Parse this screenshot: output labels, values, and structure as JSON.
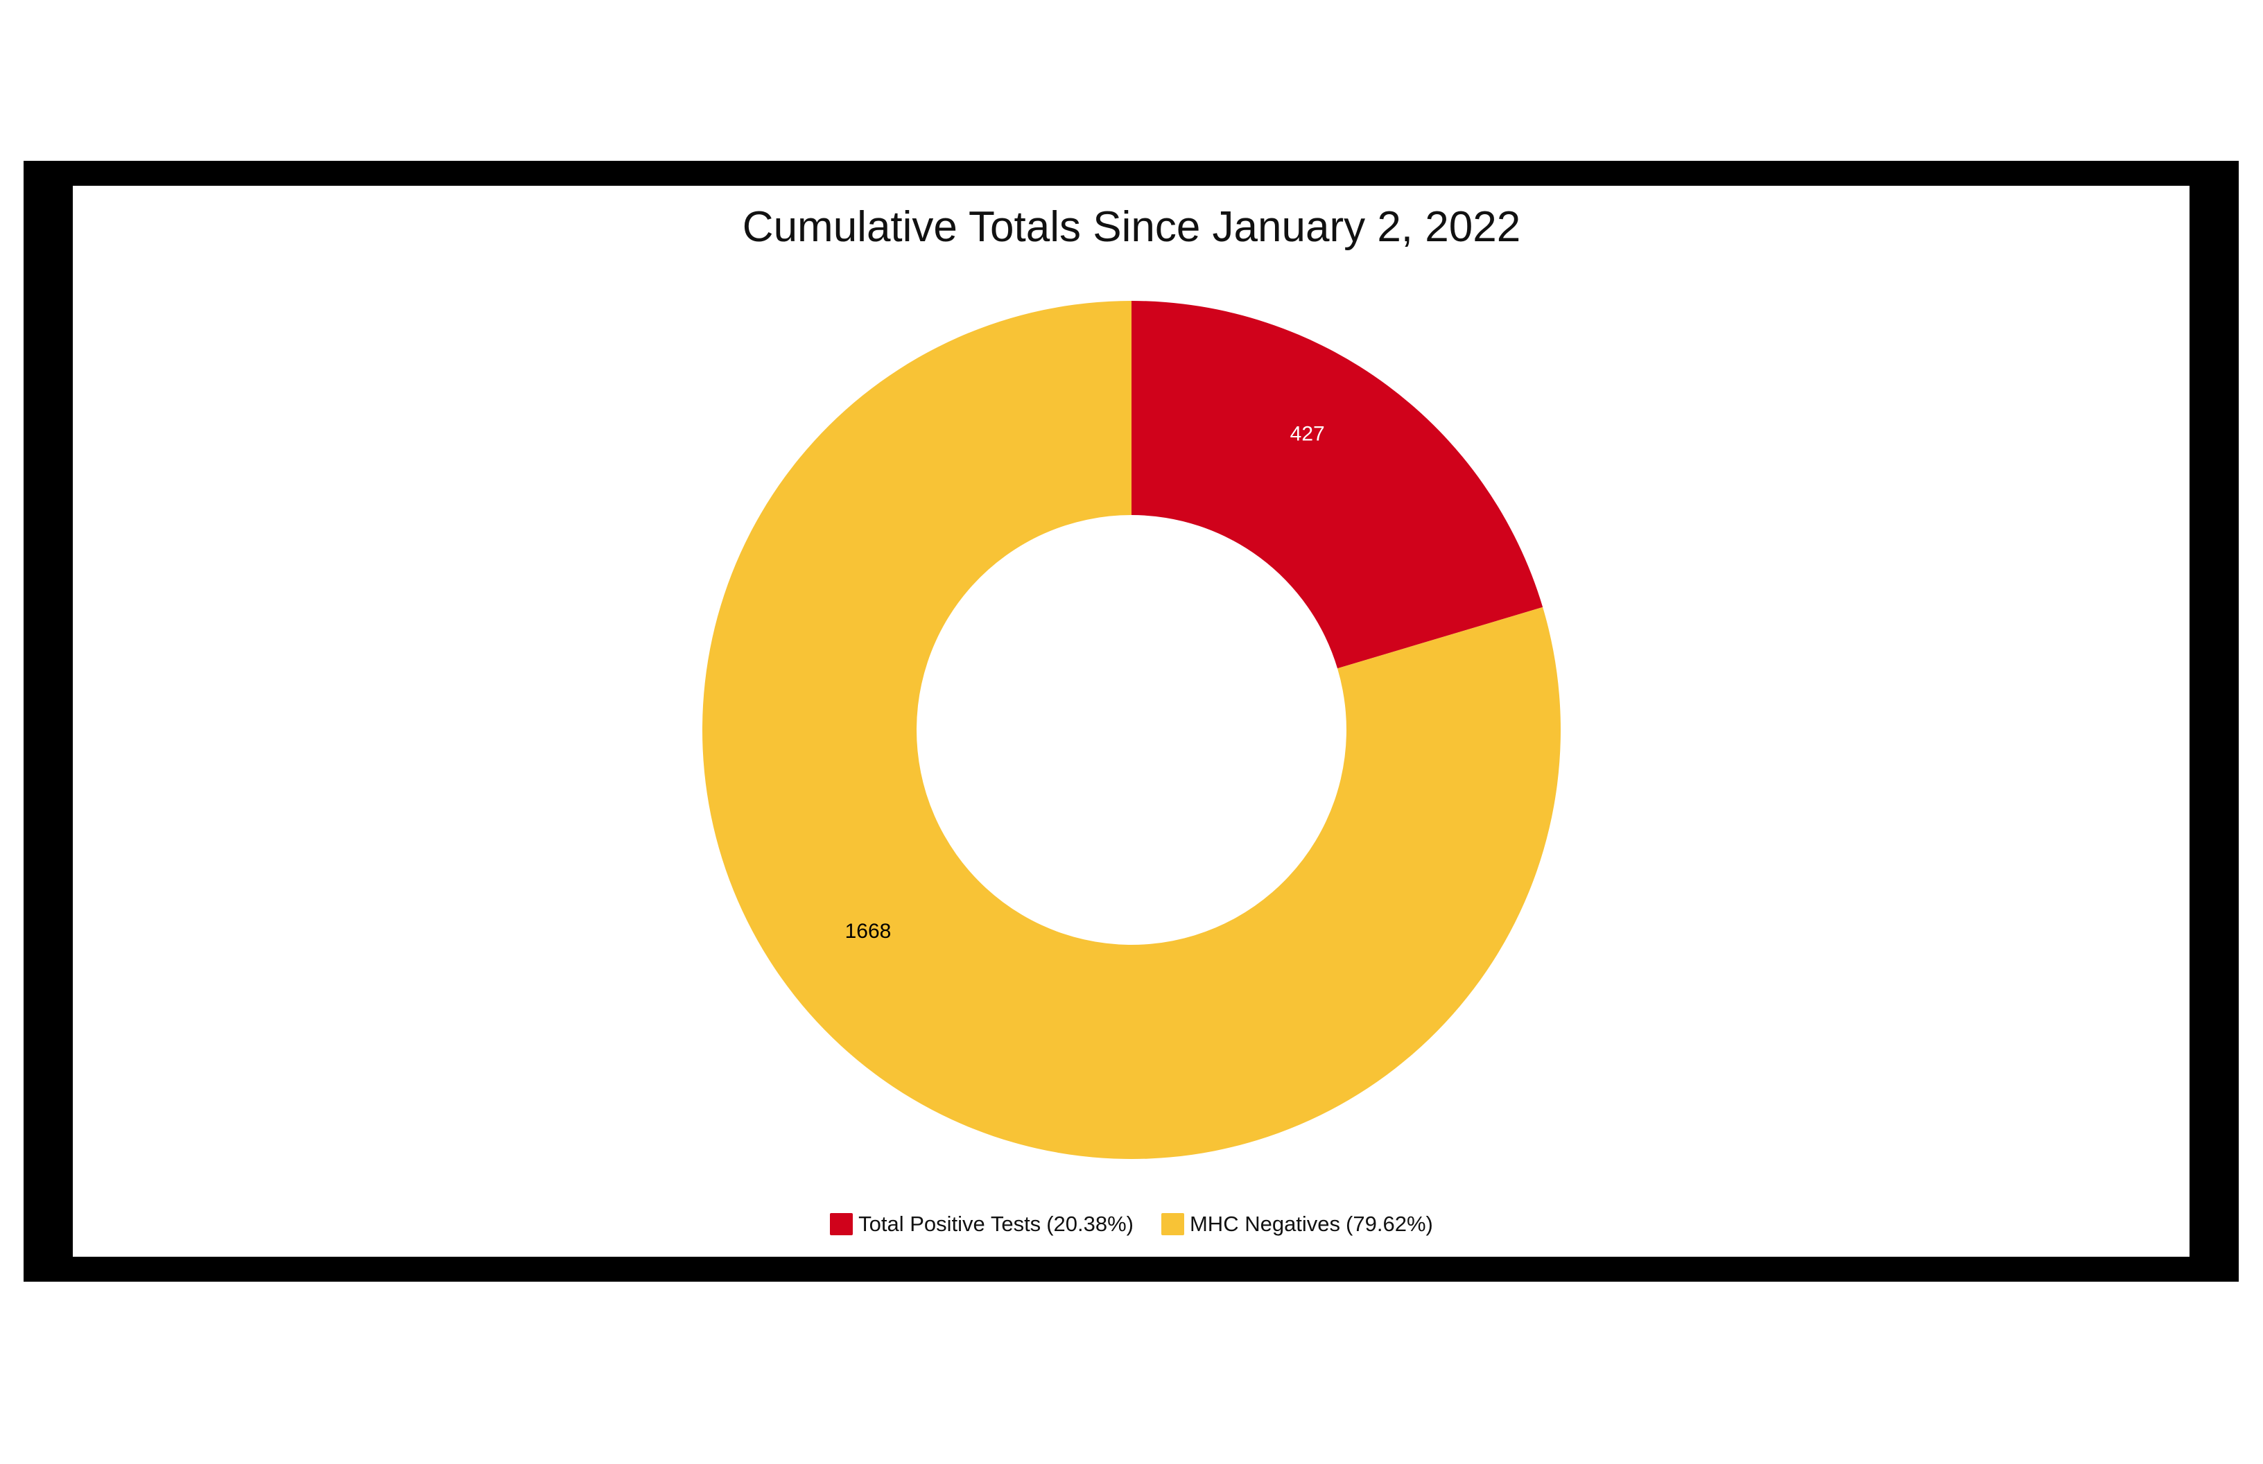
{
  "chart_data": {
    "type": "pie",
    "title": "Cumulative Totals Since January 2, 2022",
    "donut": true,
    "slices": [
      {
        "label": "Total Positive Tests",
        "value": 427,
        "percent_label": "(20.38%)",
        "color": "#D0021B",
        "label_color": "#ffffff"
      },
      {
        "label": "MHC Negatives",
        "value": 1668,
        "percent_label": "(79.62%)",
        "color": "#F8C336",
        "label_color": "#000000"
      }
    ],
    "legend_position": "bottom"
  }
}
